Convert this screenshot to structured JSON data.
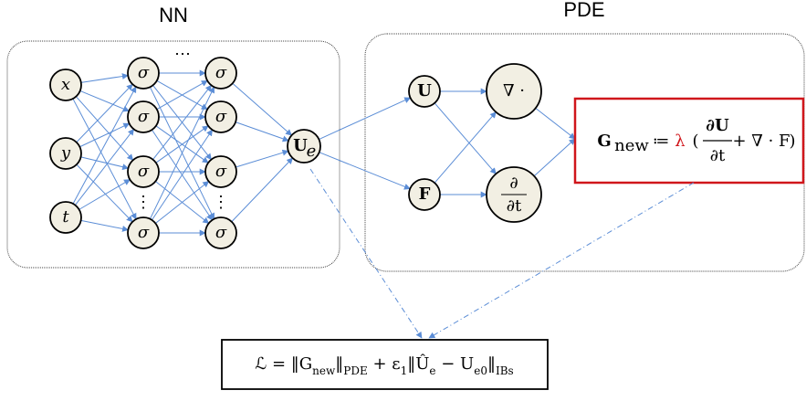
{
  "titles": {
    "nn": "NN",
    "pde": "PDE"
  },
  "inputs": [
    "x",
    "y",
    "t"
  ],
  "neuron": "σ",
  "ellipsis_h": "⋯",
  "ellipsis_v": "⋮",
  "output": {
    "base": "U",
    "sub": "e"
  },
  "pde_nodes": {
    "u": "U",
    "f": "F",
    "div": "∇ ·",
    "dt_num": "∂",
    "dt_den": "∂t"
  },
  "residual": {
    "lhs": "G",
    "sub": "new",
    "assign": "≔",
    "lambda": "λ",
    "open": "(",
    "frac_num": "∂U",
    "frac_den": "∂t",
    "plus": "+ ∇ · F",
    "close": ")"
  },
  "loss": [
    {
      "t": "ℒ = ‖G"
    },
    {
      "t": "new",
      "sub": true
    },
    {
      "t": "‖"
    },
    {
      "t": "PDE",
      "sub": true
    },
    {
      "t": " + ε"
    },
    {
      "t": "1",
      "sub": true
    },
    {
      "t": "‖Û"
    },
    {
      "t": "e",
      "sub": true
    },
    {
      "t": " − U"
    },
    {
      "t": "e0",
      "sub": true
    },
    {
      "t": "‖"
    },
    {
      "t": "IBs",
      "sub": true
    }
  ]
}
